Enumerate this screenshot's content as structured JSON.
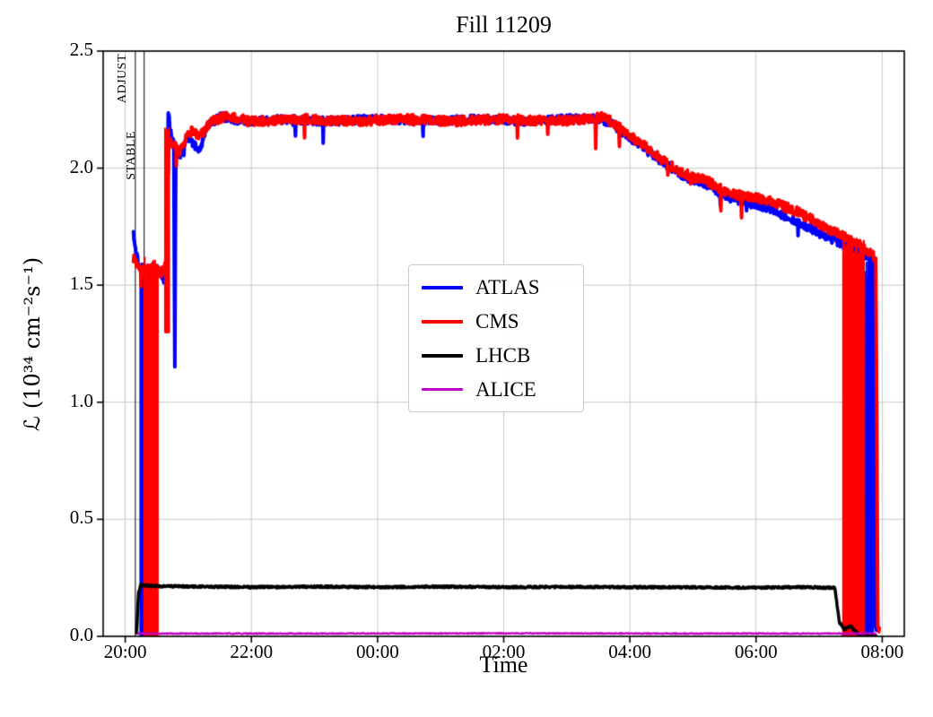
{
  "chart_data": {
    "type": "line",
    "title": "Fill 11209",
    "xlabel": "Time",
    "ylabel": "ℒ (10³⁴ cm⁻²s⁻¹)",
    "plot_bg": "#ffffff",
    "grid": {
      "show": true,
      "color": "#c9c9c9"
    },
    "x_axis": {
      "tick_labels": [
        "20:00",
        "22:00",
        "00:00",
        "02:00",
        "04:00",
        "06:00",
        "08:00"
      ],
      "tick_hours": [
        0,
        2,
        4,
        6,
        8,
        10,
        12
      ],
      "range_hours": [
        -0.35,
        12.35
      ]
    },
    "y_axis": {
      "ticks": [
        0.0,
        0.5,
        1.0,
        1.5,
        2.0,
        2.5
      ],
      "tick_labels": [
        "0.0",
        "0.5",
        "1.0",
        "1.5",
        "2.0",
        "2.5"
      ],
      "range": [
        0,
        2.5
      ]
    },
    "legend": {
      "position": "center",
      "entries": [
        "ATLAS",
        "CMS",
        "LHCB",
        "ALICE"
      ]
    },
    "annotations": [
      {
        "label": "ADJUST",
        "x_hour": 0.16,
        "label_y": 2.49
      },
      {
        "label": "STABLE",
        "x_hour": 0.3,
        "label_y": 2.16
      }
    ],
    "series": [
      {
        "name": "ATLAS",
        "color": "#0000ff",
        "width": 4,
        "noise": 0.018,
        "spike_prob": 0.012,
        "spike_amp": 0.1,
        "points": [
          [
            0.13,
            1.72
          ],
          [
            0.17,
            1.64
          ],
          [
            0.22,
            1.58
          ],
          [
            0.35,
            1.56
          ],
          [
            0.5,
            1.57
          ],
          [
            0.58,
            1.55
          ],
          [
            0.62,
            1.52
          ],
          [
            0.655,
            1.56
          ],
          [
            0.68,
            2.24
          ],
          [
            0.73,
            2.13
          ],
          [
            0.77,
            2.1
          ],
          [
            0.785,
            1.1
          ],
          [
            0.8,
            2.05
          ],
          [
            0.88,
            2.06
          ],
          [
            0.98,
            2.14
          ],
          [
            1.08,
            2.1
          ],
          [
            1.18,
            2.08
          ],
          [
            1.3,
            2.18
          ],
          [
            1.5,
            2.22
          ],
          [
            1.9,
            2.2
          ],
          [
            2.5,
            2.21
          ],
          [
            3.2,
            2.2
          ],
          [
            4.0,
            2.21
          ],
          [
            4.8,
            2.2
          ],
          [
            5.6,
            2.21
          ],
          [
            6.4,
            2.2
          ],
          [
            7.0,
            2.21
          ],
          [
            7.5,
            2.21
          ],
          [
            7.7,
            2.19
          ],
          [
            8.0,
            2.13
          ],
          [
            8.3,
            2.07
          ],
          [
            8.6,
            2.01
          ],
          [
            8.9,
            1.96
          ],
          [
            9.2,
            1.93
          ],
          [
            9.4,
            1.9
          ],
          [
            9.6,
            1.87
          ],
          [
            9.9,
            1.85
          ],
          [
            10.2,
            1.83
          ],
          [
            10.5,
            1.79
          ],
          [
            10.8,
            1.75
          ],
          [
            11.1,
            1.71
          ],
          [
            11.4,
            1.67
          ],
          [
            11.6,
            1.64
          ],
          [
            11.8,
            1.62
          ],
          [
            11.86,
            1.6
          ],
          [
            11.88,
            0.05
          ],
          [
            11.92,
            0.02
          ]
        ],
        "bands": [
          {
            "from": 0.24,
            "to": 0.46,
            "bottom": 0.0,
            "top": 1.6
          },
          {
            "from": 11.62,
            "to": 11.86,
            "bottom": 0.0,
            "top": 1.63
          }
        ]
      },
      {
        "name": "CMS",
        "color": "#ff0000",
        "width": 4,
        "noise": 0.02,
        "spike_prob": 0.012,
        "spike_amp": 0.12,
        "points": [
          [
            0.13,
            1.62
          ],
          [
            0.2,
            1.58
          ],
          [
            0.3,
            1.56
          ],
          [
            0.45,
            1.58
          ],
          [
            0.55,
            1.55
          ],
          [
            0.62,
            1.57
          ],
          [
            0.65,
            1.6
          ],
          [
            0.67,
            2.05
          ],
          [
            0.7,
            2.12
          ],
          [
            0.78,
            2.1
          ],
          [
            0.85,
            2.07
          ],
          [
            0.95,
            2.12
          ],
          [
            1.05,
            2.16
          ],
          [
            1.2,
            2.14
          ],
          [
            1.35,
            2.2
          ],
          [
            1.6,
            2.22
          ],
          [
            2.0,
            2.2
          ],
          [
            2.8,
            2.21
          ],
          [
            3.6,
            2.2
          ],
          [
            4.4,
            2.21
          ],
          [
            5.2,
            2.2
          ],
          [
            6.0,
            2.21
          ],
          [
            6.8,
            2.2
          ],
          [
            7.4,
            2.21
          ],
          [
            7.6,
            2.22
          ],
          [
            7.8,
            2.18
          ],
          [
            8.1,
            2.12
          ],
          [
            8.4,
            2.06
          ],
          [
            8.7,
            2.0
          ],
          [
            9.0,
            1.96
          ],
          [
            9.2,
            1.95
          ],
          [
            9.5,
            1.9
          ],
          [
            9.8,
            1.88
          ],
          [
            10.1,
            1.87
          ],
          [
            10.4,
            1.84
          ],
          [
            10.6,
            1.82
          ],
          [
            10.9,
            1.78
          ],
          [
            11.2,
            1.73
          ],
          [
            11.45,
            1.7
          ],
          [
            11.65,
            1.67
          ],
          [
            11.85,
            1.63
          ],
          [
            11.9,
            1.6
          ],
          [
            11.93,
            0.05
          ],
          [
            11.96,
            0.02
          ]
        ],
        "bands": [
          {
            "from": 0.3,
            "to": 0.52,
            "bottom": 0.0,
            "top": 1.62
          },
          {
            "from": 0.63,
            "to": 0.7,
            "bottom": 1.3,
            "top": 2.18
          },
          {
            "from": 11.38,
            "to": 11.72,
            "bottom": 0.0,
            "top": 1.7
          }
        ]
      },
      {
        "name": "LHCB",
        "color": "#000000",
        "width": 3.5,
        "noise": 0.004,
        "spike_prob": 0,
        "spike_amp": 0,
        "points": [
          [
            0.18,
            0.01
          ],
          [
            0.21,
            0.19
          ],
          [
            0.25,
            0.22
          ],
          [
            0.4,
            0.215
          ],
          [
            1.0,
            0.213
          ],
          [
            2.0,
            0.21
          ],
          [
            3.0,
            0.212
          ],
          [
            4.0,
            0.21
          ],
          [
            5.0,
            0.212
          ],
          [
            6.0,
            0.21
          ],
          [
            7.0,
            0.211
          ],
          [
            8.0,
            0.21
          ],
          [
            9.0,
            0.209
          ],
          [
            10.0,
            0.208
          ],
          [
            10.8,
            0.21
          ],
          [
            11.25,
            0.207
          ],
          [
            11.32,
            0.06
          ],
          [
            11.4,
            0.03
          ],
          [
            11.5,
            0.045
          ],
          [
            11.58,
            0.02
          ],
          [
            11.65,
            0.005
          ],
          [
            11.9,
            0.004
          ]
        ],
        "bands": []
      },
      {
        "name": "ALICE",
        "color": "#c000c0",
        "width": 2.2,
        "noise": 0.002,
        "spike_prob": 0,
        "spike_amp": 0,
        "points": [
          [
            0.2,
            0.012
          ],
          [
            3.0,
            0.012
          ],
          [
            6.0,
            0.013
          ],
          [
            9.0,
            0.012
          ],
          [
            11.9,
            0.012
          ]
        ],
        "bands": []
      }
    ]
  }
}
